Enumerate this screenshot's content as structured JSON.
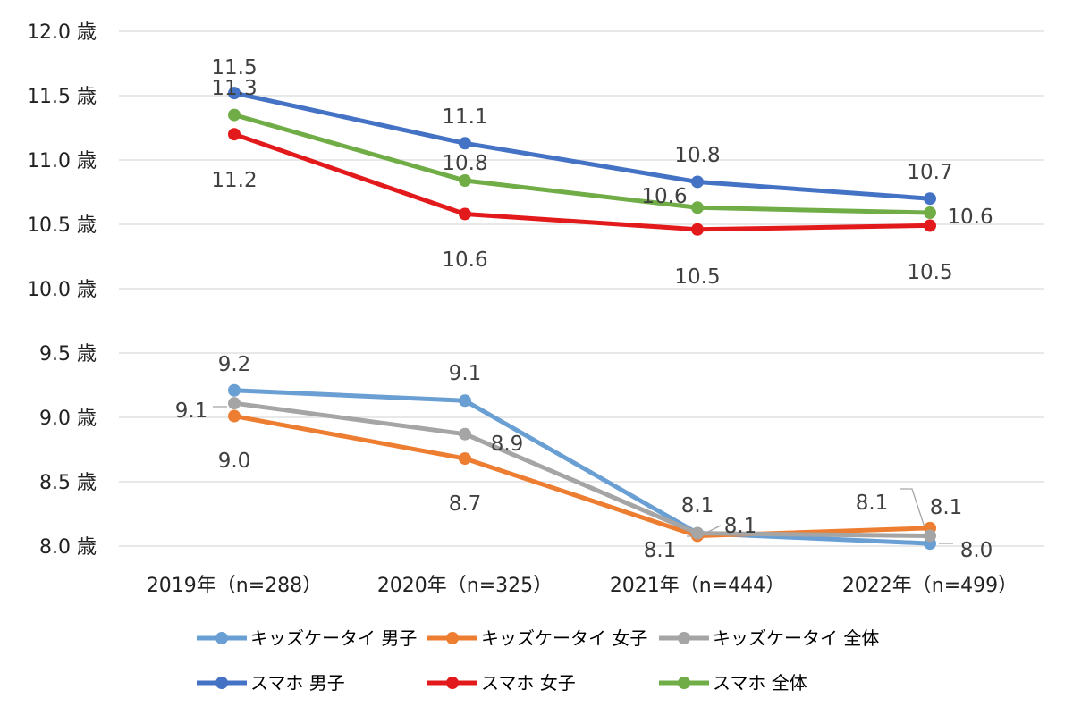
{
  "chart_data": {
    "type": "line",
    "categories": [
      "2019年（n=288）",
      "2020年（n=325）",
      "2021年（n=444）",
      "2022年（n=499）"
    ],
    "y_unit": "歳",
    "ylim": [
      8.0,
      12.0
    ],
    "yticks": [
      "8.0 歳",
      "8.5 歳",
      "9.0 歳",
      "9.5 歳",
      "10.0 歳",
      "10.5 歳",
      "11.0 歳",
      "11.5 歳",
      "12.0 歳"
    ],
    "grid": true,
    "legend_position": "bottom",
    "series": [
      {
        "name": "キッズケータイ 男子",
        "color": "#6a9fd3",
        "values": [
          9.21,
          9.13,
          8.1,
          8.02
        ],
        "labels": [
          "9.2",
          "9.1",
          "8.1",
          "8.0"
        ]
      },
      {
        "name": "キッズケータイ 女子",
        "color": "#ed7d31",
        "values": [
          9.01,
          8.68,
          8.08,
          8.14
        ],
        "labels": [
          "9.0",
          "8.7",
          "8.1",
          "8.1"
        ]
      },
      {
        "name": "キッズケータイ 全体",
        "color": "#a5a5a5",
        "values": [
          9.11,
          8.87,
          8.1,
          8.08
        ],
        "labels": [
          "9.1",
          "8.9",
          "8.1",
          "8.1"
        ]
      },
      {
        "name": "スマホ 男子",
        "color": "#4472c4",
        "values": [
          11.52,
          11.13,
          10.83,
          10.7
        ],
        "labels": [
          "11.5",
          "11.1",
          "10.8",
          "10.7"
        ]
      },
      {
        "name": "スマホ 女子",
        "color": "#e31a1c",
        "values": [
          11.2,
          10.58,
          10.46,
          10.49
        ],
        "labels": [
          "11.2",
          "10.6",
          "10.5",
          "10.5"
        ]
      },
      {
        "name": "スマホ 全体",
        "color": "#70ad47",
        "values": [
          11.35,
          10.84,
          10.63,
          10.59
        ],
        "labels": [
          "11.3",
          "10.8",
          "10.6",
          "10.6"
        ]
      }
    ]
  }
}
